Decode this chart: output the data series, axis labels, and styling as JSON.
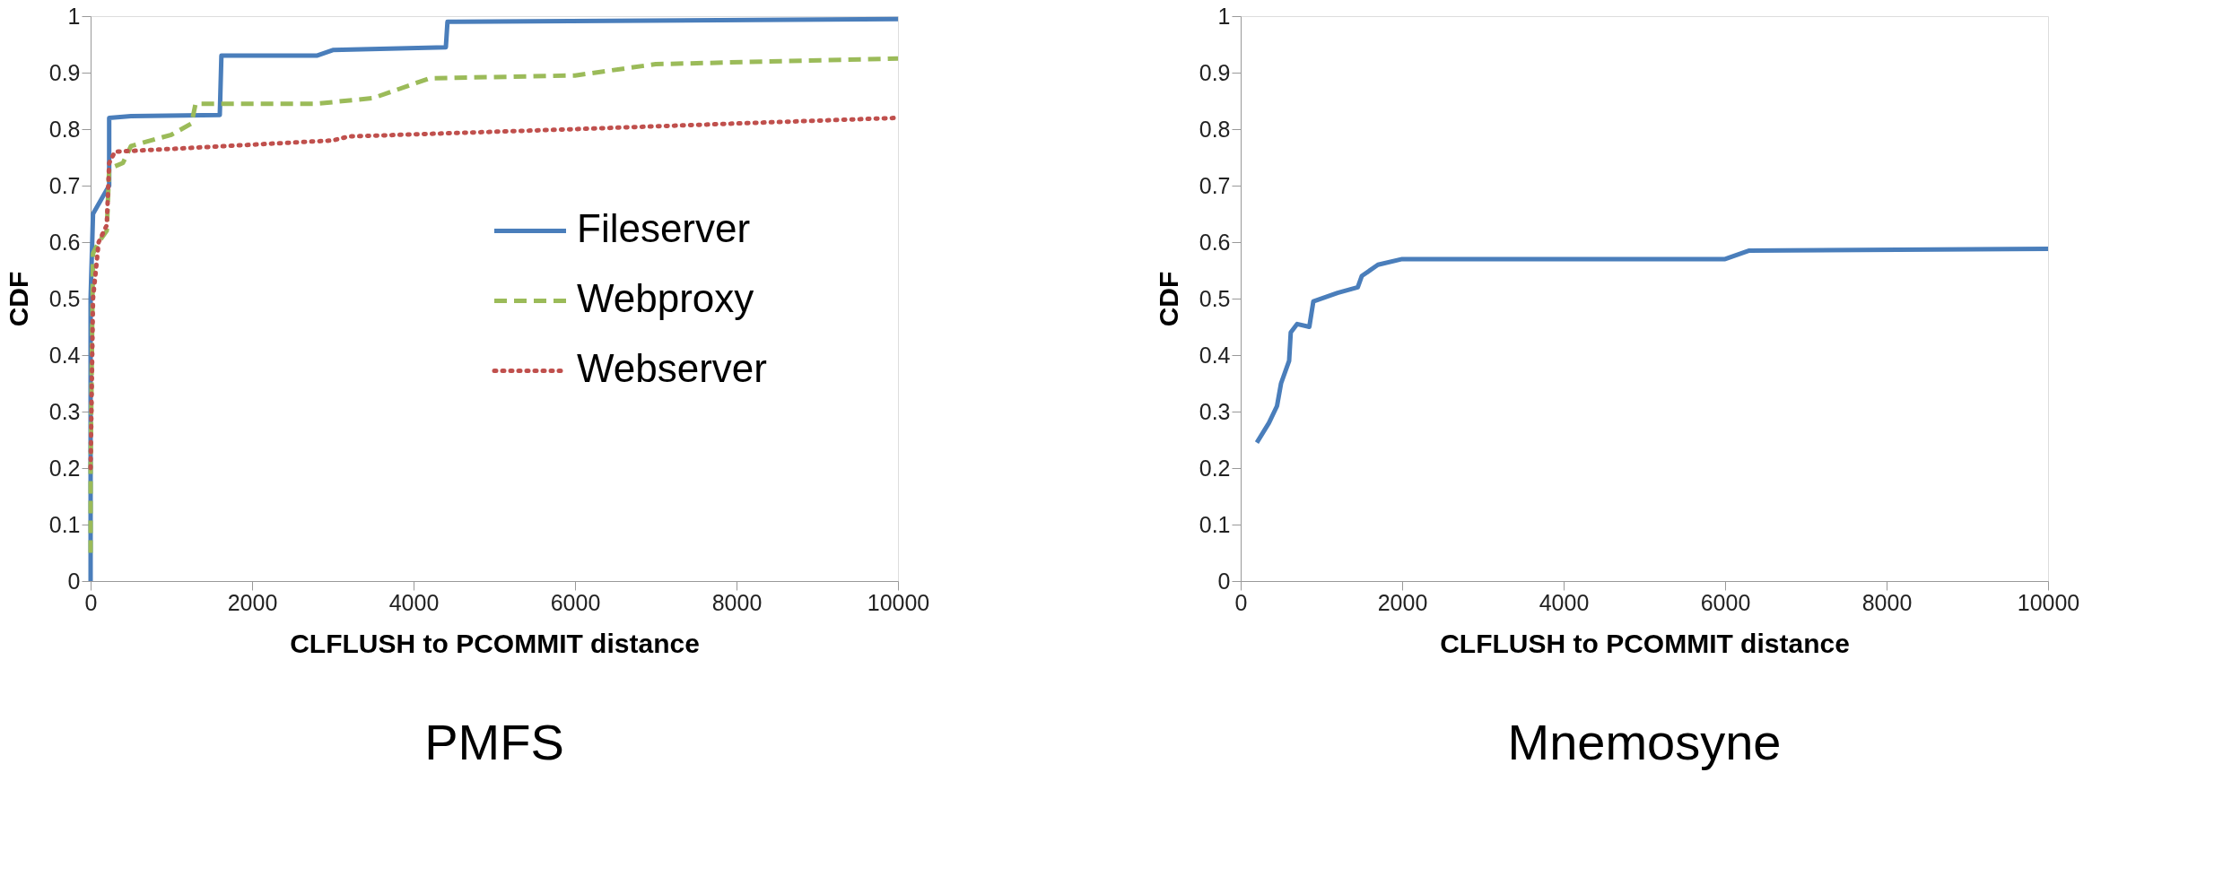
{
  "chart_data": [
    {
      "type": "line",
      "title": "PMFS",
      "xlabel": "CLFLUSH to PCOMMIT distance",
      "ylabel": "CDF",
      "xlim": [
        0,
        10000
      ],
      "xticks": [
        0,
        2000,
        4000,
        6000,
        8000,
        10000
      ],
      "ylim": [
        0,
        1
      ],
      "yticks": [
        0,
        0.1,
        0.2,
        0.3,
        0.4,
        0.5,
        0.6,
        0.7,
        0.8,
        0.9,
        1
      ],
      "grid": false,
      "legend": "right",
      "marker": "none",
      "series": [
        {
          "name": "Fileserver",
          "color": "#4a7ebb",
          "line_style": "solid",
          "x": [
            0,
            0,
            30,
            150,
            230,
            230,
            500,
            1600,
            1620,
            2800,
            3000,
            4400,
            4420,
            10000
          ],
          "values": [
            0,
            0.5,
            0.65,
            0.68,
            0.7,
            0.82,
            0.823,
            0.825,
            0.93,
            0.93,
            0.94,
            0.945,
            0.99,
            0.995
          ]
        },
        {
          "name": "Webproxy",
          "color": "#9bbb59",
          "line_style": "dashed",
          "x": [
            0,
            0,
            30,
            100,
            200,
            230,
            400,
            500,
            1000,
            1250,
            1300,
            2800,
            3500,
            4200,
            6000,
            7000,
            10000
          ],
          "values": [
            0.05,
            0.2,
            0.58,
            0.6,
            0.62,
            0.73,
            0.74,
            0.77,
            0.79,
            0.81,
            0.845,
            0.845,
            0.855,
            0.89,
            0.895,
            0.915,
            0.925
          ]
        },
        {
          "name": "Webserver",
          "color": "#c0504d",
          "line_style": "dotted",
          "x": [
            0,
            30,
            100,
            200,
            230,
            300,
            1000,
            3000,
            3200,
            6000,
            10000
          ],
          "values": [
            0.2,
            0.5,
            0.6,
            0.63,
            0.74,
            0.76,
            0.765,
            0.78,
            0.787,
            0.8,
            0.82
          ]
        }
      ]
    },
    {
      "type": "line",
      "title": "Mnemosyne",
      "xlabel": "CLFLUSH to PCOMMIT distance",
      "ylabel": "CDF",
      "xlim": [
        0,
        10000
      ],
      "xticks": [
        0,
        2000,
        4000,
        6000,
        8000,
        10000
      ],
      "ylim": [
        0,
        1
      ],
      "yticks": [
        0,
        0.1,
        0.2,
        0.3,
        0.4,
        0.5,
        0.6,
        0.7,
        0.8,
        0.9,
        1
      ],
      "grid": false,
      "legend": false,
      "marker": "none",
      "series": [
        {
          "color": "#4a7ebb",
          "line_style": "solid",
          "x": [
            200,
            350,
            450,
            500,
            600,
            620,
            700,
            850,
            900,
            1200,
            1450,
            1500,
            1700,
            2000,
            6000,
            6300,
            10000
          ],
          "values": [
            0.245,
            0.28,
            0.31,
            0.35,
            0.39,
            0.44,
            0.455,
            0.45,
            0.495,
            0.51,
            0.52,
            0.54,
            0.56,
            0.57,
            0.57,
            0.585,
            0.588
          ]
        }
      ]
    }
  ]
}
